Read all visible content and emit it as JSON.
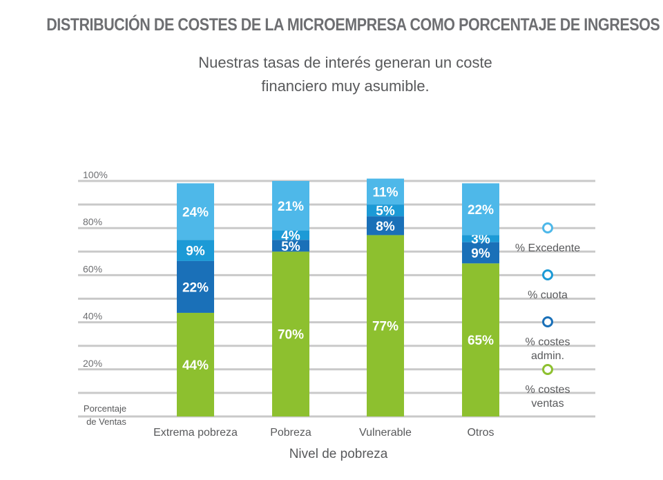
{
  "title": "DISTRIBUCIÓN DE COSTES DE LA MICROEMPRESA COMO PORCENTAJE DE INGRESOS",
  "subtitle_lines": [
    "Nuestras tasas de interés generan un coste",
    "financiero muy asumible."
  ],
  "chart_data": {
    "type": "bar",
    "stacked": true,
    "xlabel": "Nivel de pobreza",
    "ylabel": [
      "Porcentaje",
      "de Ventas"
    ],
    "ylim": [
      0,
      100
    ],
    "yticks": [
      "20%",
      "40%",
      "60%",
      "80%",
      "100%"
    ],
    "grid": true,
    "legend_position": "right",
    "categories": [
      "Extrema pobreza",
      "Pobreza",
      "Vulnerable",
      "Otros"
    ],
    "series": [
      {
        "name": "% costes ventas",
        "legend_lines": [
          "% costes",
          "ventas"
        ],
        "color": "#8dc02f",
        "values": [
          44,
          70,
          77,
          65
        ],
        "labels": [
          "44%",
          "70%",
          "77%",
          "65%"
        ]
      },
      {
        "name": "% costes admin.",
        "legend_lines": [
          "% costes",
          "admin."
        ],
        "color": "#1a70b8",
        "values": [
          22,
          5,
          8,
          9
        ],
        "labels": [
          "22%",
          "5%",
          "8%",
          "9%"
        ]
      },
      {
        "name": "% cuota",
        "legend_lines": [
          "% cuota"
        ],
        "color": "#1c9ad6",
        "values": [
          9,
          4,
          5,
          3
        ],
        "labels": [
          "9%",
          "4%",
          "5%",
          "3%"
        ]
      },
      {
        "name": "% Excedente",
        "legend_lines": [
          "% Excedente"
        ],
        "color": "#4eb8e9",
        "values": [
          24,
          21,
          11,
          22
        ],
        "labels": [
          "24%",
          "21%",
          "11%",
          "22%"
        ]
      }
    ]
  }
}
